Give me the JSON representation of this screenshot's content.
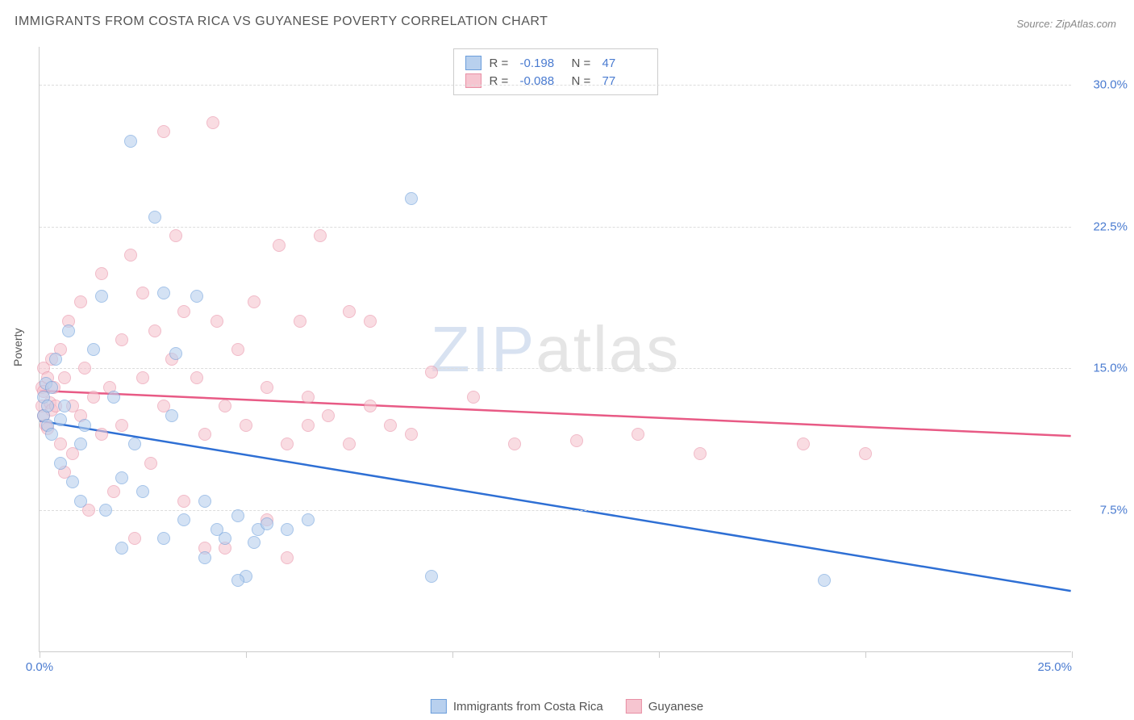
{
  "title": "IMMIGRANTS FROM COSTA RICA VS GUYANESE POVERTY CORRELATION CHART",
  "source": "Source: ZipAtlas.com",
  "ylabel": "Poverty",
  "watermark_zip": "ZIP",
  "watermark_atlas": "atlas",
  "chart": {
    "type": "scatter",
    "xlim": [
      0,
      25
    ],
    "ylim": [
      0,
      32
    ],
    "xticks": [
      0,
      5,
      10,
      15,
      20,
      25
    ],
    "xtick_labels": {
      "0": "0.0%",
      "25": "25.0%"
    },
    "yticks": [
      7.5,
      15.0,
      22.5,
      30.0
    ],
    "ytick_labels": [
      "7.5%",
      "15.0%",
      "22.5%",
      "30.0%"
    ],
    "background_color": "#ffffff",
    "grid_color": "#dddddd",
    "axis_color": "#cccccc",
    "label_color": "#4a7bd0",
    "marker_radius": 8,
    "marker_opacity": 0.6,
    "series": [
      {
        "name": "Immigrants from Costa Rica",
        "fill": "#b8d0ee",
        "stroke": "#6b9edb",
        "line_color": "#2e6fd4",
        "R": "-0.198",
        "N": "47",
        "trend": {
          "x1": 0,
          "y1": 12.2,
          "x2": 25,
          "y2": 3.2
        },
        "points": [
          [
            0.1,
            13.5
          ],
          [
            0.1,
            12.5
          ],
          [
            0.15,
            14.2
          ],
          [
            0.2,
            13.0
          ],
          [
            0.2,
            12.0
          ],
          [
            0.3,
            11.5
          ],
          [
            0.3,
            14.0
          ],
          [
            0.4,
            15.5
          ],
          [
            0.5,
            12.3
          ],
          [
            0.5,
            10.0
          ],
          [
            0.6,
            13.0
          ],
          [
            0.7,
            17.0
          ],
          [
            0.8,
            9.0
          ],
          [
            1.0,
            11.0
          ],
          [
            1.0,
            8.0
          ],
          [
            1.1,
            12.0
          ],
          [
            1.3,
            16.0
          ],
          [
            1.5,
            18.8
          ],
          [
            1.6,
            7.5
          ],
          [
            1.8,
            13.5
          ],
          [
            2.0,
            9.2
          ],
          [
            2.0,
            5.5
          ],
          [
            2.2,
            27.0
          ],
          [
            2.3,
            11.0
          ],
          [
            2.5,
            8.5
          ],
          [
            2.8,
            23.0
          ],
          [
            3.0,
            19.0
          ],
          [
            3.0,
            6.0
          ],
          [
            3.2,
            12.5
          ],
          [
            3.3,
            15.8
          ],
          [
            3.5,
            7.0
          ],
          [
            3.8,
            18.8
          ],
          [
            4.0,
            5.0
          ],
          [
            4.0,
            8.0
          ],
          [
            4.3,
            6.5
          ],
          [
            4.5,
            6.0
          ],
          [
            4.8,
            7.2
          ],
          [
            5.0,
            4.0
          ],
          [
            5.3,
            6.5
          ],
          [
            5.5,
            6.8
          ],
          [
            6.0,
            6.5
          ],
          [
            6.5,
            7.0
          ],
          [
            9.0,
            24.0
          ],
          [
            9.5,
            4.0
          ],
          [
            4.8,
            3.8
          ],
          [
            19.0,
            3.8
          ],
          [
            5.2,
            5.8
          ]
        ]
      },
      {
        "name": "Guyanese",
        "fill": "#f6c5d0",
        "stroke": "#e88fa5",
        "line_color": "#e85a85",
        "R": "-0.088",
        "N": "77",
        "trend": {
          "x1": 0,
          "y1": 13.8,
          "x2": 25,
          "y2": 11.4
        },
        "points": [
          [
            0.05,
            14.0
          ],
          [
            0.05,
            13.0
          ],
          [
            0.1,
            15.0
          ],
          [
            0.1,
            12.5
          ],
          [
            0.1,
            13.8
          ],
          [
            0.15,
            12.0
          ],
          [
            0.2,
            14.5
          ],
          [
            0.2,
            11.8
          ],
          [
            0.25,
            13.2
          ],
          [
            0.3,
            15.5
          ],
          [
            0.3,
            12.8
          ],
          [
            0.35,
            14.0
          ],
          [
            0.4,
            13.0
          ],
          [
            0.5,
            16.0
          ],
          [
            0.5,
            11.0
          ],
          [
            0.6,
            14.5
          ],
          [
            0.6,
            9.5
          ],
          [
            0.7,
            17.5
          ],
          [
            0.8,
            13.0
          ],
          [
            0.8,
            10.5
          ],
          [
            1.0,
            18.5
          ],
          [
            1.0,
            12.5
          ],
          [
            1.1,
            15.0
          ],
          [
            1.2,
            7.5
          ],
          [
            1.3,
            13.5
          ],
          [
            1.5,
            20.0
          ],
          [
            1.5,
            11.5
          ],
          [
            1.7,
            14.0
          ],
          [
            1.8,
            8.5
          ],
          [
            2.0,
            16.5
          ],
          [
            2.0,
            12.0
          ],
          [
            2.2,
            21.0
          ],
          [
            2.3,
            6.0
          ],
          [
            2.5,
            19.0
          ],
          [
            2.5,
            14.5
          ],
          [
            2.7,
            10.0
          ],
          [
            2.8,
            17.0
          ],
          [
            3.0,
            13.0
          ],
          [
            3.0,
            27.5
          ],
          [
            3.2,
            15.5
          ],
          [
            3.3,
            22.0
          ],
          [
            3.5,
            18.0
          ],
          [
            3.5,
            8.0
          ],
          [
            3.8,
            14.5
          ],
          [
            4.0,
            11.5
          ],
          [
            4.0,
            5.5
          ],
          [
            4.3,
            17.5
          ],
          [
            4.5,
            13.0
          ],
          [
            4.5,
            5.5
          ],
          [
            4.8,
            16.0
          ],
          [
            5.0,
            12.0
          ],
          [
            5.2,
            18.5
          ],
          [
            5.5,
            14.0
          ],
          [
            5.5,
            7.0
          ],
          [
            5.8,
            21.5
          ],
          [
            6.0,
            11.0
          ],
          [
            6.0,
            5.0
          ],
          [
            6.3,
            17.5
          ],
          [
            6.5,
            13.5
          ],
          [
            6.8,
            22.0
          ],
          [
            7.0,
            12.5
          ],
          [
            7.5,
            18.0
          ],
          [
            7.5,
            11.0
          ],
          [
            8.0,
            13.0
          ],
          [
            8.0,
            17.5
          ],
          [
            8.5,
            12.0
          ],
          [
            9.0,
            11.5
          ],
          [
            9.5,
            14.8
          ],
          [
            10.5,
            13.5
          ],
          [
            11.5,
            11.0
          ],
          [
            13.0,
            11.2
          ],
          [
            14.5,
            11.5
          ],
          [
            16.0,
            10.5
          ],
          [
            18.5,
            11.0
          ],
          [
            20.0,
            10.5
          ],
          [
            4.2,
            28.0
          ],
          [
            6.5,
            12.0
          ]
        ]
      }
    ]
  },
  "legend": {
    "items": [
      "Immigrants from Costa Rica",
      "Guyanese"
    ]
  },
  "stats_labels": {
    "R": "R =",
    "N": "N ="
  }
}
